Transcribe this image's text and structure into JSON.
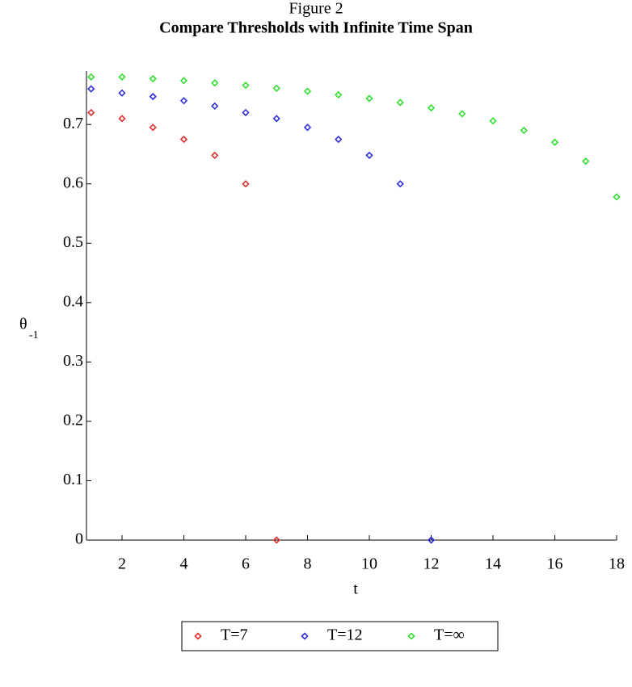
{
  "chart_data": {
    "type": "scatter",
    "title": "Figure 2",
    "subtitle": "Compare Thresholds with Infinite Time Span",
    "x_label": "t",
    "y_label": "θ",
    "y_label_subscript": "-1",
    "xlim": [
      0.85,
      18
    ],
    "ylim": [
      0,
      0.79
    ],
    "xticks": [
      2,
      4,
      6,
      8,
      10,
      12,
      14,
      16,
      18
    ],
    "yticks": [
      0,
      0.1,
      0.2,
      0.3,
      0.4,
      0.5,
      0.6,
      0.7
    ],
    "legend": "bottom",
    "series": [
      {
        "name": "T=7",
        "color": "#e03030",
        "x": [
          1,
          2,
          3,
          4,
          5,
          6,
          7
        ],
        "values": [
          0.72,
          0.71,
          0.695,
          0.675,
          0.648,
          0.6,
          0
        ]
      },
      {
        "name": "T=12",
        "color": "#3030e0",
        "x": [
          1,
          2,
          3,
          4,
          5,
          6,
          7,
          8,
          9,
          10,
          11,
          12
        ],
        "values": [
          0.76,
          0.753,
          0.747,
          0.74,
          0.731,
          0.72,
          0.71,
          0.695,
          0.675,
          0.648,
          0.6,
          0
        ]
      },
      {
        "name": "T=∞",
        "color": "#30e030",
        "x": [
          1,
          2,
          3,
          4,
          5,
          6,
          7,
          8,
          9,
          10,
          11,
          12,
          13,
          14,
          15,
          16,
          17,
          18
        ],
        "values": [
          0.78,
          0.78,
          0.777,
          0.774,
          0.77,
          0.766,
          0.761,
          0.756,
          0.75,
          0.744,
          0.737,
          0.728,
          0.718,
          0.706,
          0.69,
          0.67,
          0.638,
          0.578
        ]
      }
    ]
  }
}
